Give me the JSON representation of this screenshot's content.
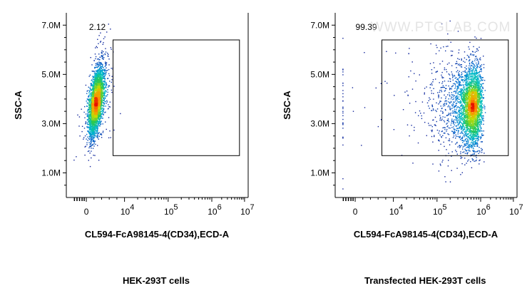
{
  "watermark": "WWW.PTGLAB.COM",
  "chart_data": [
    {
      "type": "scatter",
      "subtype": "flow-cytometry-density-dot-plot",
      "title": "",
      "caption": "HEK-293T cells",
      "xlabel": "CL594-FcA98145-4(CD34),ECD-A",
      "ylabel": "SSC-A",
      "x_scale": "biexponential",
      "x_ticks": [
        {
          "label": "0",
          "value": 0
        },
        {
          "label": "10",
          "sup": "4",
          "value": 10000
        },
        {
          "label": "10",
          "sup": "5",
          "value": 100000
        },
        {
          "label": "10",
          "sup": "6",
          "value": 1000000
        },
        {
          "label": "10",
          "sup": "7",
          "value": 10000000
        }
      ],
      "y_scale": "linear",
      "ylim": [
        0,
        7500000
      ],
      "y_ticks": [
        {
          "label": "1.0M",
          "value": 1000000
        },
        {
          "label": "3.0M",
          "value": 3000000
        },
        {
          "label": "5.0M",
          "value": 5000000
        },
        {
          "label": "7.0M",
          "value": 7000000
        }
      ],
      "gate": {
        "x_range": [
          7000,
          7000000
        ],
        "y_range": [
          1700000,
          6400000
        ],
        "percent_label": "2.12"
      },
      "populations": [
        {
          "x_center": 2500,
          "x_spread": 900,
          "y_center": 3900000,
          "y_spread": 750000,
          "events": 3000,
          "skew": 550
        },
        {
          "x_center": 5000,
          "x_spread": 1500,
          "y_center": 4800000,
          "y_spread": 1000000,
          "events": 90,
          "skew": 0
        }
      ]
    },
    {
      "type": "scatter",
      "subtype": "flow-cytometry-density-dot-plot",
      "title": "",
      "caption": "Transfected HEK-293T cells",
      "xlabel": "CL594-FcA98145-4(CD34),ECD-A",
      "ylabel": "SSC-A",
      "x_scale": "biexponential",
      "x_ticks": [
        {
          "label": "0",
          "value": 0
        },
        {
          "label": "10",
          "sup": "4",
          "value": 10000
        },
        {
          "label": "10",
          "sup": "5",
          "value": 100000
        },
        {
          "label": "10",
          "sup": "6",
          "value": 1000000
        },
        {
          "label": "10",
          "sup": "7",
          "value": 10000000
        }
      ],
      "y_scale": "linear",
      "ylim": [
        0,
        7500000
      ],
      "y_ticks": [
        {
          "label": "1.0M",
          "value": 1000000
        },
        {
          "label": "3.0M",
          "value": 3000000
        },
        {
          "label": "5.0M",
          "value": 5000000
        },
        {
          "label": "7.0M",
          "value": 7000000
        }
      ],
      "gate": {
        "x_range": [
          7000,
          7000000
        ],
        "y_range": [
          1700000,
          6400000
        ],
        "percent_label": "99.39"
      },
      "populations": [
        {
          "x_center": 600000,
          "x_spread": 220000,
          "y_center": 3700000,
          "y_spread": 850000,
          "events": 3200,
          "skew": 0
        },
        {
          "x_center": 120000,
          "x_spread": 90000,
          "y_center": 3700000,
          "y_spread": 1300000,
          "events": 260,
          "skew": 0
        }
      ]
    }
  ]
}
